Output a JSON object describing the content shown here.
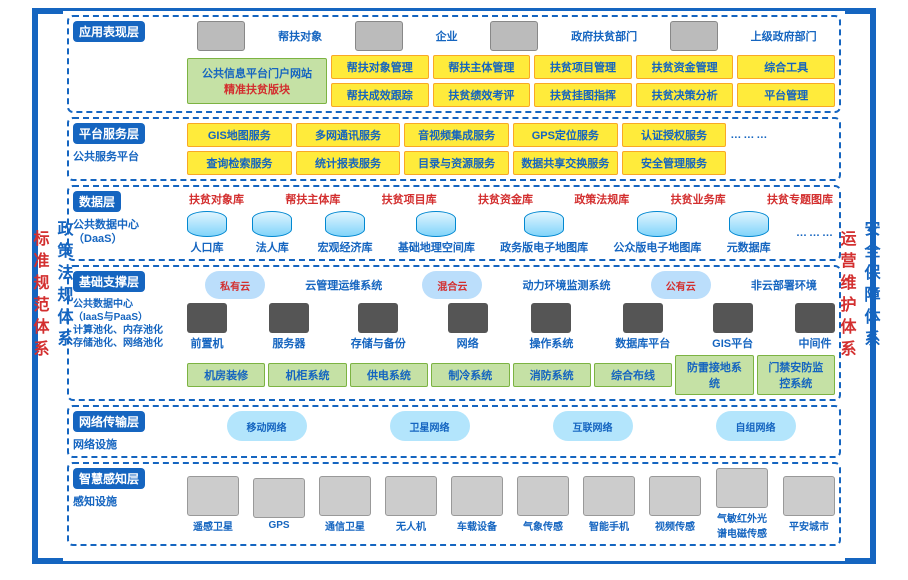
{
  "left_rail": {
    "top": "政策法规体系",
    "bottom": "标准规范体系"
  },
  "right_rail": {
    "top": "安全保障体系",
    "bottom": "运营维护体系"
  },
  "layers": {
    "app": {
      "tag": "应用表现层",
      "devices": [
        "帮扶对象",
        "企业",
        "政府扶贫部门",
        "上级政府部门"
      ],
      "portal_l1": "公共信息平台门户网站",
      "portal_l2": "精准扶贫版块",
      "buttons": [
        "帮扶对象管理",
        "帮扶主体管理",
        "扶贫项目管理",
        "扶贫资金管理",
        "综合工具",
        "帮扶成效跟踪",
        "扶贫绩效考评",
        "扶贫挂图指挥",
        "扶贫决策分析",
        "平台管理"
      ]
    },
    "svc": {
      "tag": "平台服务层",
      "sub": "公共服务平台",
      "buttons": [
        "GIS地图服务",
        "多网通讯服务",
        "音视频集成服务",
        "GPS定位服务",
        "认证授权服务",
        "查询检索服务",
        "统计报表服务",
        "目录与资源服务",
        "数据共享交换服务",
        "安全管理服务"
      ]
    },
    "data": {
      "tag": "数据层",
      "sub1": "公共数据中心",
      "sub2": "（DaaS）",
      "reds": [
        "扶贫对象库",
        "帮扶主体库",
        "扶贫项目库",
        "扶贫资金库",
        "政策法规库",
        "扶贫业务库",
        "扶贫专题图库"
      ],
      "cylinders": [
        "人口库",
        "法人库",
        "宏观经济库",
        "基础地理空间库",
        "政务版电子地图库",
        "公众版电子地图库",
        "元数据库"
      ]
    },
    "infra": {
      "tag": "基础支撑层",
      "sub1": "公共数据中心",
      "sub2": "（IaaS与PaaS）",
      "sub3": "计算池化、内存池化",
      "sub4": "存储池化、网络池化",
      "clouds": [
        "私有云",
        "混合云",
        "公有云"
      ],
      "syslabels": [
        "云管理运维系统",
        "动力环境监测系统",
        "非云部署环境"
      ],
      "hw": [
        "前置机",
        "服务器",
        "存储与备份",
        "网络",
        "操作系统",
        "数据库平台",
        "GIS平台",
        "中间件"
      ],
      "grn": [
        "机房装修",
        "机柜系统",
        "供电系统",
        "制冷系统",
        "消防系统",
        "综合布线",
        "防雷接地系统",
        "门禁安防监控系统"
      ]
    },
    "net": {
      "tag": "网络传输层",
      "sub": "网络设施",
      "clouds": [
        "移动网络",
        "卫星网络",
        "互联网络",
        "自组网络"
      ]
    },
    "sense": {
      "tag": "智慧感知层",
      "sub": "感知设施",
      "items": [
        "遥感卫星",
        "GPS",
        "通信卫星",
        "无人机",
        "车载设备",
        "气象传感",
        "智能手机",
        "视频传感",
        "气敏红外光谱电磁传感",
        "平安城市"
      ]
    }
  }
}
